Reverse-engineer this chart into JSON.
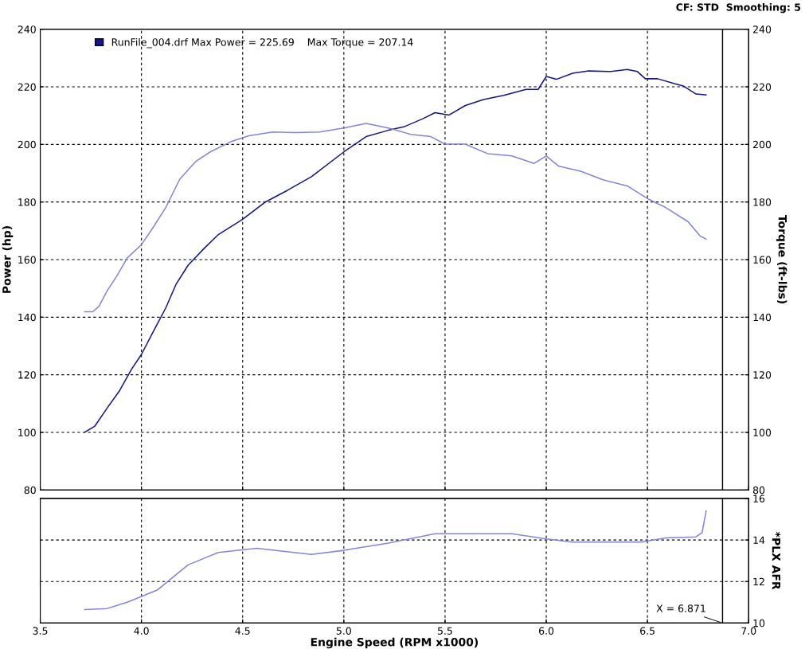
{
  "chart_data": [
    {
      "type": "line",
      "ylabel": "Power (hp)",
      "y2label": "Torque (ft-lbs)",
      "annotations": [
        "CF: STD  Smoothing: 5"
      ],
      "xlim": [
        3.5,
        7.0
      ],
      "xticks": [
        3.5,
        4,
        4.5,
        5,
        5.5,
        6,
        6.5,
        7
      ],
      "ylim": [
        80,
        240
      ],
      "yticks": [
        80,
        100,
        120,
        140,
        160,
        180,
        200,
        220,
        240
      ],
      "y2lim": [
        80,
        240
      ],
      "y2ticks": [
        80,
        100,
        120,
        140,
        160,
        180,
        200,
        220,
        240
      ],
      "tick_labels": "y",
      "grid": true,
      "legend": "top left",
      "marker": "none",
      "line_style": "solid",
      "ref_lines": [
        {
          "axis": "x",
          "value": 6.871,
          "color": "#000000"
        }
      ],
      "series": [
        {
          "name": "RunFile_004.drf Max Power = 225.69    Max Torque = 207.14",
          "color": "#14148c",
          "x": [
            3.72,
            3.77,
            3.83,
            3.89,
            3.95,
            4.0,
            4.06,
            4.12,
            4.17,
            4.23,
            4.31,
            4.38,
            4.5,
            4.61,
            4.72,
            4.84,
            5.0,
            5.11,
            5.22,
            5.3,
            5.39,
            5.45,
            5.52,
            5.6,
            5.69,
            5.79,
            5.9,
            5.96,
            6.0,
            6.05,
            6.13,
            6.21,
            6.32,
            6.4,
            6.45,
            6.49,
            6.55,
            6.63,
            6.68,
            6.74,
            6.79
          ],
          "values": [
            100.1,
            102.2,
            108.4,
            114.3,
            121.8,
            127.1,
            135.2,
            143.2,
            151.3,
            158.0,
            163.9,
            168.7,
            174.0,
            179.9,
            184.0,
            188.8,
            197.4,
            202.7,
            204.9,
            206.2,
            208.9,
            211.0,
            210.2,
            213.5,
            215.6,
            217.0,
            219.1,
            219.1,
            223.6,
            222.6,
            224.7,
            225.5,
            225.3,
            226.0,
            225.3,
            222.8,
            222.8,
            221.2,
            220.2,
            217.5,
            217.2
          ]
        },
        {
          "color": "#8484e0",
          "axis": "y2",
          "x": [
            3.72,
            3.76,
            3.79,
            3.83,
            3.88,
            3.93,
            4.0,
            4.06,
            4.12,
            4.19,
            4.27,
            4.34,
            4.44,
            4.53,
            4.65,
            4.76,
            4.88,
            5.0,
            5.11,
            5.22,
            5.33,
            5.43,
            5.5,
            5.6,
            5.71,
            5.83,
            5.94,
            6.0,
            6.06,
            6.17,
            6.28,
            6.4,
            6.51,
            6.59,
            6.7,
            6.76,
            6.79
          ],
          "values": [
            141.9,
            141.9,
            143.8,
            149.1,
            154.5,
            160.6,
            165.2,
            171.4,
            178.1,
            188.0,
            194.2,
            197.4,
            200.9,
            203.0,
            204.3,
            204.1,
            204.3,
            205.7,
            207.3,
            205.7,
            203.5,
            202.7,
            200.1,
            200.1,
            196.8,
            196.0,
            193.4,
            196.0,
            192.5,
            190.7,
            187.7,
            185.6,
            180.8,
            178.1,
            173.2,
            168.2,
            167.1
          ]
        }
      ]
    },
    {
      "type": "line",
      "xlabel": "Engine Speed (RPM x1000)",
      "y2label": "*PLX AFR",
      "xlim": [
        3.5,
        7.0
      ],
      "xticks": [
        3.5,
        {
          "value": 4,
          "label": "4.0"
        },
        4.5,
        {
          "value": 5,
          "label": "5.0"
        },
        5.5,
        {
          "value": 6,
          "label": "6.0"
        },
        6.5,
        {
          "value": 7,
          "label": "7.0"
        }
      ],
      "y2lim": [
        10,
        16
      ],
      "y2ticks": [
        10,
        12,
        14,
        16
      ],
      "grid": true,
      "marker": "none",
      "line_style": "solid",
      "ref_lines": [
        {
          "axis": "x",
          "value": 6.871,
          "label": "X = 6.871",
          "color": "#000000"
        }
      ],
      "series": [
        {
          "color": "#8484e0",
          "axis": "y2",
          "x": [
            3.72,
            3.83,
            3.93,
            4.08,
            4.23,
            4.38,
            4.57,
            4.84,
            5.0,
            5.22,
            5.45,
            5.68,
            5.83,
            6.0,
            6.13,
            6.36,
            6.47,
            6.59,
            6.74,
            6.77,
            6.79
          ],
          "values": [
            10.65,
            10.7,
            11.0,
            11.6,
            12.8,
            13.4,
            13.6,
            13.3,
            13.5,
            13.85,
            14.3,
            14.3,
            14.3,
            14.05,
            13.9,
            13.9,
            13.9,
            14.1,
            14.15,
            14.35,
            15.4
          ]
        }
      ]
    }
  ]
}
